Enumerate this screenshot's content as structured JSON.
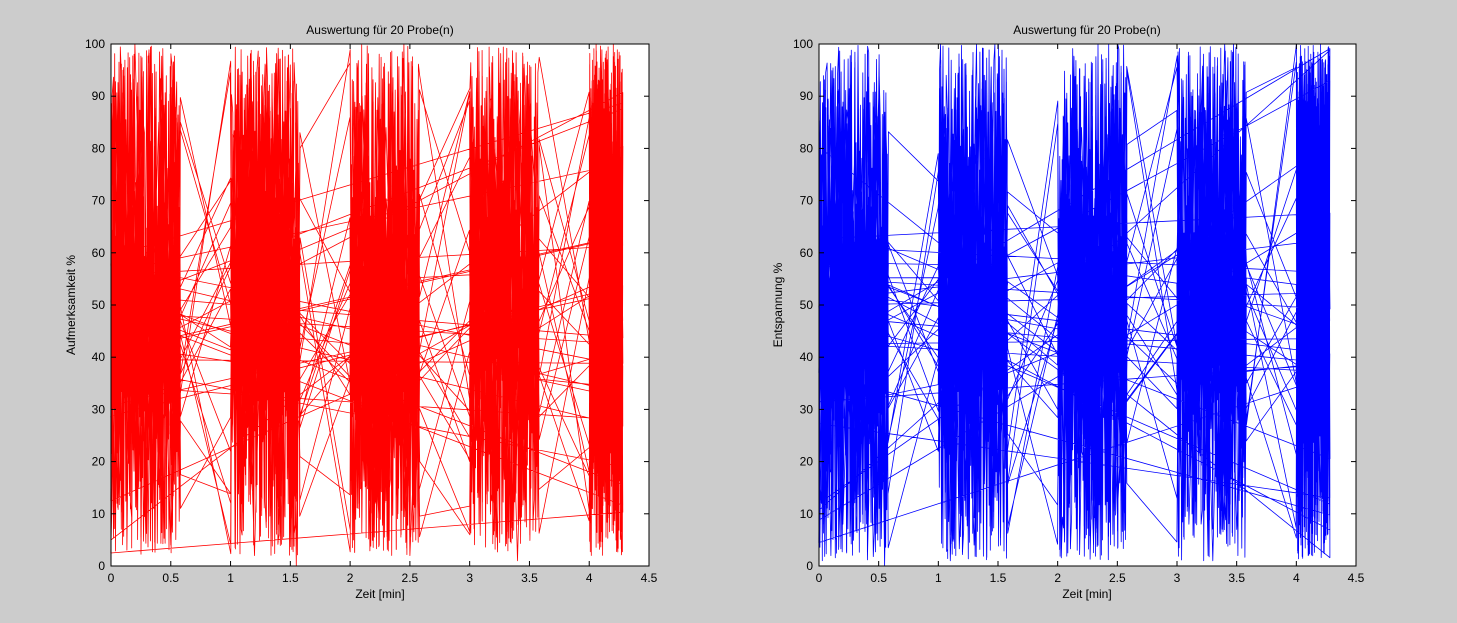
{
  "figure": {
    "background": "#cccccc"
  },
  "chart_data": [
    {
      "type": "line",
      "title": "Auswertung für 20 Probe(n)",
      "xlabel": "Zeit [min]",
      "ylabel": "Aufmerksamkeit %",
      "xlim": [
        0,
        4.5
      ],
      "ylim": [
        0,
        100
      ],
      "xticks": [
        0,
        0.5,
        1,
        1.5,
        2,
        2.5,
        3,
        3.5,
        4,
        4.5
      ],
      "xtick_labels": [
        "0",
        "0.5",
        "1",
        "1.5",
        "2",
        "2.5",
        "3",
        "3.5",
        "4",
        "4.5"
      ],
      "yticks": [
        0,
        10,
        20,
        30,
        40,
        50,
        60,
        70,
        80,
        90,
        100
      ],
      "ytick_labels": [
        "0",
        "10",
        "20",
        "30",
        "40",
        "50",
        "60",
        "70",
        "80",
        "90",
        "100"
      ],
      "grid": false,
      "color": "#ff0000",
      "segments": [
        [
          0,
          0.58
        ],
        [
          1,
          1.58
        ],
        [
          2,
          2.58
        ],
        [
          3,
          3.58
        ],
        [
          4,
          4.28
        ]
      ],
      "band_range": [
        2,
        100
      ],
      "band_center": [
        38,
        58
      ],
      "series": [
        {
          "points_sampled": [
            [
              0.0,
              5
            ],
            [
              0.02,
              88
            ],
            [
              0.05,
              12
            ],
            [
              0.1,
              95
            ],
            [
              0.15,
              20
            ],
            [
              0.2,
              100
            ],
            [
              0.3,
              18
            ],
            [
              0.4,
              85
            ],
            [
              0.5,
              4
            ],
            [
              0.58,
              47
            ],
            [
              1.0,
              22
            ],
            [
              1.1,
              76
            ],
            [
              1.2,
              2
            ],
            [
              1.3,
              88
            ],
            [
              1.4,
              8
            ],
            [
              1.5,
              96
            ],
            [
              1.55,
              0
            ],
            [
              1.58,
              83
            ],
            [
              2.0,
              35
            ],
            [
              2.1,
              90
            ],
            [
              2.2,
              18
            ],
            [
              2.3,
              84
            ],
            [
              2.4,
              10
            ],
            [
              2.45,
              100
            ],
            [
              2.5,
              2
            ],
            [
              2.58,
              47
            ],
            [
              3.0,
              20
            ],
            [
              3.1,
              82
            ],
            [
              3.2,
              6
            ],
            [
              3.3,
              85
            ],
            [
              3.4,
              1
            ],
            [
              3.5,
              88
            ],
            [
              3.58,
              60
            ],
            [
              4.0,
              18
            ],
            [
              4.05,
              90
            ],
            [
              4.1,
              8
            ],
            [
              4.15,
              97
            ],
            [
              4.2,
              20
            ],
            [
              4.25,
              86
            ],
            [
              4.28,
              47
            ]
          ]
        }
      ]
    },
    {
      "type": "line",
      "title": "Auswertung für 20 Probe(n)",
      "xlabel": "Zeit [min]",
      "ylabel": "Entspannung %",
      "xlim": [
        0,
        4.5
      ],
      "ylim": [
        0,
        100
      ],
      "xticks": [
        0,
        0.5,
        1,
        1.5,
        2,
        2.5,
        3,
        3.5,
        4,
        4.5
      ],
      "xtick_labels": [
        "0",
        "0.5",
        "1",
        "1.5",
        "2",
        "2.5",
        "3",
        "3.5",
        "4",
        "4.5"
      ],
      "yticks": [
        0,
        10,
        20,
        30,
        40,
        50,
        60,
        70,
        80,
        90,
        100
      ],
      "ytick_labels": [
        "0",
        "10",
        "20",
        "30",
        "40",
        "50",
        "60",
        "70",
        "80",
        "90",
        "100"
      ],
      "grid": false,
      "color": "#0000ff",
      "segments": [
        [
          0,
          0.58
        ],
        [
          1,
          1.58
        ],
        [
          2,
          2.58
        ],
        [
          3,
          3.58
        ],
        [
          4,
          4.28
        ]
      ],
      "band_range": [
        1,
        100
      ],
      "band_center": [
        38,
        58
      ],
      "series": [
        {
          "points_sampled": [
            [
              0.0,
              12
            ],
            [
              0.05,
              70
            ],
            [
              0.1,
              2
            ],
            [
              0.15,
              88
            ],
            [
              0.2,
              8
            ],
            [
              0.3,
              80
            ],
            [
              0.4,
              12
            ],
            [
              0.5,
              90
            ],
            [
              0.55,
              0
            ],
            [
              0.58,
              47
            ],
            [
              1.0,
              22
            ],
            [
              1.05,
              88
            ],
            [
              1.1,
              1
            ],
            [
              1.2,
              85
            ],
            [
              1.3,
              4
            ],
            [
              1.4,
              82
            ],
            [
              1.5,
              14
            ],
            [
              1.58,
              47
            ],
            [
              2.0,
              30
            ],
            [
              2.05,
              86
            ],
            [
              2.1,
              12
            ],
            [
              2.2,
              84
            ],
            [
              2.3,
              4
            ],
            [
              2.4,
              86
            ],
            [
              2.5,
              10
            ],
            [
              2.58,
              47
            ],
            [
              3.0,
              13
            ],
            [
              3.05,
              93
            ],
            [
              3.1,
              8
            ],
            [
              3.2,
              88
            ],
            [
              3.3,
              1
            ],
            [
              3.4,
              100
            ],
            [
              3.5,
              7
            ],
            [
              3.58,
              47
            ],
            [
              4.0,
              27
            ],
            [
              4.05,
              88
            ],
            [
              4.1,
              13
            ],
            [
              4.15,
              90
            ],
            [
              4.2,
              13
            ],
            [
              4.25,
              83
            ],
            [
              4.28,
              47
            ]
          ]
        }
      ]
    }
  ]
}
